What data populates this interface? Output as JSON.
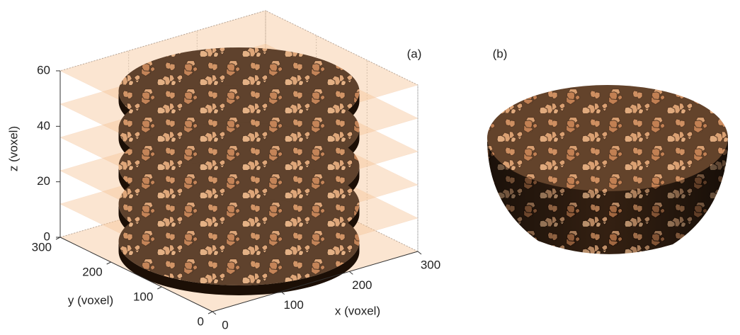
{
  "panel_a": {
    "label": "(a)",
    "x_axis": {
      "label": "x (voxel)",
      "ticks": [
        0,
        100,
        200,
        300
      ]
    },
    "y_axis": {
      "label": "y (voxel)",
      "ticks": [
        0,
        100,
        200,
        300
      ]
    },
    "z_axis": {
      "label": "z (voxel)",
      "ticks": [
        0,
        20,
        40,
        60
      ]
    }
  },
  "panel_b": {
    "label": "(b)"
  }
}
